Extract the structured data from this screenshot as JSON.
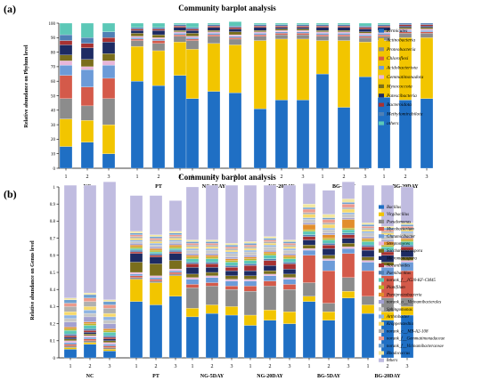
{
  "chart_data": [
    {
      "type": "bar",
      "stacked": true,
      "panel_label": "(a)",
      "title": "Community barplot analysis",
      "ylabel": "Relative abundance on Phylum level",
      "ylim": [
        0,
        100
      ],
      "yticks": [
        "0",
        "10",
        "20",
        "30",
        "40",
        "50",
        "60",
        "70",
        "80",
        "90",
        "100"
      ],
      "group_labels": [
        "NC",
        "PT",
        "NG-5DAY",
        "NG-20DAY",
        "BG-5DAY",
        "BG-20DAY"
      ],
      "replicate_labels": [
        "1",
        "2",
        "3"
      ],
      "legend_position": "right",
      "series": [
        {
          "name": "Firmicutes",
          "color": "#1f6fc4",
          "values": [
            15,
            18,
            10,
            60,
            57,
            64,
            48,
            53,
            52,
            41,
            47,
            47,
            65,
            42,
            63,
            49,
            47,
            48
          ]
        },
        {
          "name": "Actinobacteria",
          "color": "#f2c500",
          "values": [
            19,
            15,
            20,
            24,
            24,
            23,
            34,
            33,
            33,
            47,
            42,
            42,
            23,
            46,
            24,
            39,
            43,
            42
          ]
        },
        {
          "name": "Proteobacteria",
          "color": "#8c8c8c",
          "values": [
            14,
            10,
            18,
            4,
            5,
            4,
            6,
            5,
            4,
            3,
            3,
            3,
            3,
            3,
            3,
            3,
            3,
            3
          ]
        },
        {
          "name": "Chloroflexi",
          "color": "#d45a4a",
          "values": [
            16,
            13,
            14,
            1,
            2,
            1,
            1,
            1,
            1,
            1,
            1,
            1,
            1,
            1,
            1,
            1,
            1,
            1
          ]
        },
        {
          "name": "Acidobacteriota",
          "color": "#6c9bd8",
          "values": [
            7,
            12,
            9,
            1,
            1,
            1,
            1,
            1,
            1,
            1,
            1,
            1,
            1,
            1,
            1,
            1,
            1,
            1
          ]
        },
        {
          "name": "Gemmatimonadota",
          "color": "#e8b6da",
          "values": [
            3,
            2,
            3,
            1,
            1,
            1,
            1,
            1,
            1,
            1,
            1,
            1,
            1,
            1,
            1,
            1,
            1,
            1
          ]
        },
        {
          "name": "Myxococcota",
          "color": "#7a6e1c",
          "values": [
            4,
            5,
            5,
            2,
            2,
            1,
            2,
            1,
            2,
            1,
            1,
            1,
            1,
            1,
            1,
            1,
            1,
            1
          ]
        },
        {
          "name": "Patescibacteria",
          "color": "#1d2b63",
          "values": [
            7,
            8,
            8,
            2,
            3,
            2,
            2,
            2,
            2,
            2,
            1,
            1,
            2,
            2,
            2,
            2,
            1,
            1
          ]
        },
        {
          "name": "Bacteroidota",
          "color": "#a83232",
          "values": [
            3,
            3,
            3,
            1,
            1,
            1,
            1,
            1,
            1,
            1,
            1,
            1,
            1,
            1,
            1,
            1,
            1,
            1
          ]
        },
        {
          "name": "Methylomirabilota",
          "color": "#4f80b5",
          "values": [
            4,
            4,
            4,
            1,
            1,
            1,
            1,
            1,
            1,
            1,
            1,
            1,
            1,
            1,
            1,
            1,
            1,
            1
          ]
        },
        {
          "name": "others",
          "color": "#5cc8b7",
          "values": [
            8,
            10,
            6,
            3,
            3,
            1,
            3,
            1,
            3,
            1,
            1,
            1,
            1,
            1,
            2,
            1,
            0,
            0
          ]
        }
      ]
    },
    {
      "type": "bar",
      "stacked": true,
      "panel_label": "(b)",
      "title": "Community barplot analysis",
      "ylabel": "Relative abundance on Genus level",
      "ylim": [
        0,
        1
      ],
      "yticks": [
        "0",
        "0.1",
        "0.2",
        "0.3",
        "0.4",
        "0.5",
        "0.6",
        "0.7",
        "0.8",
        "0.9",
        "1"
      ],
      "group_labels": [
        "NC",
        "PT",
        "NG-5DAY",
        "NG-20DAY",
        "BG-5DAY",
        "BG-20DAY"
      ],
      "replicate_labels": [
        "1",
        "2",
        "3"
      ],
      "legend_position": "right",
      "series": [
        {
          "name": "Bacillus",
          "color": "#1f6fc4",
          "values": [
            0.05,
            0.08,
            0.04,
            0.33,
            0.31,
            0.36,
            0.24,
            0.26,
            0.25,
            0.19,
            0.22,
            0.2,
            0.33,
            0.22,
            0.35,
            0.26,
            0.22,
            0.25
          ]
        },
        {
          "name": "Virgibacillus",
          "color": "#f2c500",
          "values": [
            0.01,
            0.01,
            0.01,
            0.13,
            0.13,
            0.12,
            0.05,
            0.05,
            0.05,
            0.06,
            0.06,
            0.07,
            0.03,
            0.05,
            0.04,
            0.05,
            0.05,
            0.05
          ]
        },
        {
          "name": "Pseudomonas",
          "color": "#8c8c8c",
          "values": [
            0.01,
            0.01,
            0.01,
            0.01,
            0.01,
            0.01,
            0.12,
            0.11,
            0.1,
            0.14,
            0.14,
            0.13,
            0.08,
            0.05,
            0.08,
            0.05,
            0.08,
            0.05
          ]
        },
        {
          "name": "Mycobacterium",
          "color": "#d45a4a",
          "values": [
            0.01,
            0.01,
            0.01,
            0.01,
            0.01,
            0.01,
            0.02,
            0.02,
            0.02,
            0.03,
            0.03,
            0.03,
            0.16,
            0.19,
            0.14,
            0.15,
            0.13,
            0.16
          ]
        },
        {
          "name": "Glutamicibacter",
          "color": "#6c9bd8",
          "values": [
            0.01,
            0.01,
            0.01,
            0.01,
            0.01,
            0.01,
            0.03,
            0.03,
            0.03,
            0.03,
            0.03,
            0.03,
            0.03,
            0.06,
            0.03,
            0.05,
            0.05,
            0.05
          ]
        },
        {
          "name": "Streptomyces",
          "color": "#e8b6da",
          "values": [
            0.01,
            0.01,
            0.01,
            0.01,
            0.01,
            0.01,
            0.01,
            0.01,
            0.01,
            0.01,
            0.01,
            0.01,
            0.01,
            0.01,
            0.01,
            0.01,
            0.01,
            0.01
          ]
        },
        {
          "name": "Saccharomonospora",
          "color": "#7a6e1c",
          "values": [
            0.01,
            0.01,
            0.01,
            0.06,
            0.07,
            0.05,
            0.02,
            0.02,
            0.02,
            0.02,
            0.02,
            0.02,
            0.02,
            0.02,
            0.02,
            0.02,
            0.02,
            0.02
          ]
        },
        {
          "name": "Micromonospora",
          "color": "#1d2b63",
          "values": [
            0.01,
            0.01,
            0.01,
            0.05,
            0.04,
            0.04,
            0.04,
            0.03,
            0.03,
            0.03,
            0.03,
            0.03,
            0.03,
            0.04,
            0.03,
            0.04,
            0.04,
            0.04
          ]
        },
        {
          "name": "Nocardioides",
          "color": "#a83232",
          "values": [
            0.01,
            0.01,
            0.01,
            0.01,
            0.01,
            0.01,
            0.02,
            0.02,
            0.02,
            0.03,
            0.03,
            0.03,
            0.02,
            0.02,
            0.02,
            0.02,
            0.02,
            0.02
          ]
        },
        {
          "name": "Paenibacillus",
          "color": "#4f80b5",
          "values": [
            0.01,
            0.01,
            0.01,
            0.01,
            0.01,
            0.01,
            0.01,
            0.01,
            0.01,
            0.01,
            0.01,
            0.01,
            0.01,
            0.01,
            0.01,
            0.01,
            0.01,
            0.01
          ]
        },
        {
          "name": "norank_f__JG30-KF-CM45",
          "color": "#5cc8b7",
          "values": [
            0.02,
            0.02,
            0.02,
            0.01,
            0.01,
            0.01,
            0.02,
            0.02,
            0.02,
            0.02,
            0.02,
            0.02,
            0.02,
            0.02,
            0.02,
            0.02,
            0.02,
            0.02
          ]
        },
        {
          "name": "Planifilum",
          "color": "#b8b82a",
          "values": [
            0.01,
            0.01,
            0.01,
            0.01,
            0.01,
            0.01,
            0.01,
            0.01,
            0.01,
            0.01,
            0.01,
            0.01,
            0.01,
            0.01,
            0.01,
            0.01,
            0.01,
            0.01
          ]
        },
        {
          "name": "Pontiproteobacteria",
          "color": "#e28e2d",
          "values": [
            0.01,
            0.01,
            0.01,
            0.01,
            0.01,
            0.01,
            0.01,
            0.01,
            0.01,
            0.01,
            0.01,
            0.01,
            0.03,
            0.02,
            0.05,
            0.01,
            0.02,
            0.01
          ]
        },
        {
          "name": "norank_o__Vicinamibacterales",
          "color": "#a3a0d0",
          "values": [
            0.03,
            0.03,
            0.03,
            0.01,
            0.01,
            0.01,
            0.01,
            0.01,
            0.01,
            0.01,
            0.01,
            0.01,
            0.01,
            0.01,
            0.01,
            0.01,
            0.01,
            0.01
          ]
        },
        {
          "name": "Sphingomonas",
          "color": "#c7c7c7",
          "values": [
            0.02,
            0.02,
            0.02,
            0.01,
            0.01,
            0.01,
            0.02,
            0.02,
            0.02,
            0.02,
            0.02,
            0.02,
            0.02,
            0.02,
            0.02,
            0.02,
            0.02,
            0.02
          ]
        },
        {
          "name": "Arthrobacter",
          "color": "#8fb4e2",
          "values": [
            0.02,
            0.02,
            0.02,
            0.01,
            0.01,
            0.01,
            0.01,
            0.01,
            0.01,
            0.01,
            0.01,
            0.01,
            0.01,
            0.01,
            0.01,
            0.01,
            0.01,
            0.01
          ]
        },
        {
          "name": "Kroppenstedtia",
          "color": "#f6d96b",
          "values": [
            0.02,
            0.02,
            0.02,
            0.01,
            0.01,
            0.01,
            0.01,
            0.01,
            0.01,
            0.01,
            0.01,
            0.01,
            0.02,
            0.02,
            0.02,
            0.01,
            0.01,
            0.01
          ]
        },
        {
          "name": "norank_c__MB-A2-108",
          "color": "#b0b0b0",
          "values": [
            0.03,
            0.03,
            0.03,
            0.01,
            0.01,
            0.01,
            0.01,
            0.01,
            0.01,
            0.01,
            0.01,
            0.01,
            0.01,
            0.01,
            0.01,
            0.01,
            0.01,
            0.01
          ]
        },
        {
          "name": "norank_f__Gemmatimonadaceae",
          "color": "#ec9a8c",
          "values": [
            0.02,
            0.02,
            0.02,
            0.01,
            0.01,
            0.01,
            0.01,
            0.01,
            0.01,
            0.01,
            0.01,
            0.01,
            0.02,
            0.02,
            0.02,
            0.01,
            0.01,
            0.01
          ]
        },
        {
          "name": "norank_f__Vicinamibacteraceae",
          "color": "#6fa0d0",
          "values": [
            0.02,
            0.02,
            0.02,
            0.01,
            0.01,
            0.01,
            0.01,
            0.01,
            0.01,
            0.01,
            0.01,
            0.01,
            0.01,
            0.01,
            0.01,
            0.01,
            0.01,
            0.01
          ]
        },
        {
          "name": "Rhodococcus",
          "color": "#f2e7a0",
          "values": [
            0.01,
            0.01,
            0.01,
            0.01,
            0.01,
            0.01,
            0.01,
            0.01,
            0.01,
            0.01,
            0.01,
            0.01,
            0.02,
            0.02,
            0.02,
            0.01,
            0.01,
            0.01
          ]
        },
        {
          "name": "others",
          "color": "#c0bce0",
          "values": [
            0.66,
            0.63,
            0.69,
            0.21,
            0.23,
            0.18,
            0.31,
            0.32,
            0.34,
            0.33,
            0.3,
            0.32,
            0.12,
            0.14,
            0.1,
            0.22,
            0.24,
            0.21
          ]
        }
      ]
    }
  ]
}
